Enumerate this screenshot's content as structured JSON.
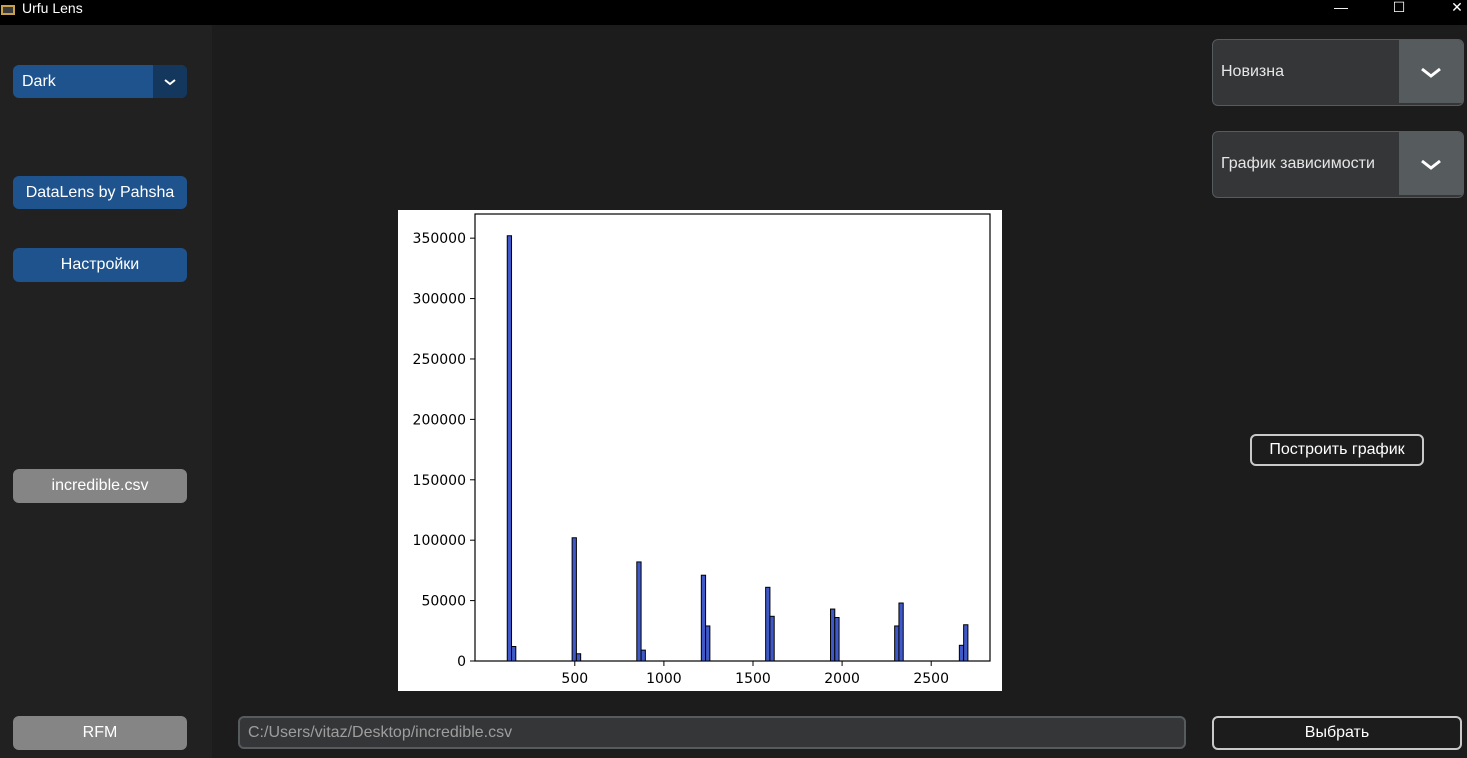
{
  "window": {
    "title": "Urfu Lens",
    "controls": {
      "minimize": "—",
      "maximize": "☐",
      "close": "✕"
    }
  },
  "sidebar": {
    "theme_value": "Dark",
    "datalens_label": "DataLens by Pahsha",
    "settings_label": "Настройки",
    "file_label": "incredible.csv",
    "rfm_label": "RFM"
  },
  "controls": {
    "metric_value": "Новизна",
    "chart_type_value": "График зависимости",
    "build_label": "Построить график",
    "select_label": "Выбрать"
  },
  "path": {
    "value": "C:/Users/vitaz/Desktop/incredible.csv"
  },
  "colors": {
    "bar_fill": "#4059c8",
    "accent": "#1f538d"
  },
  "chart_data": {
    "type": "bar",
    "title": "",
    "xlabel": "",
    "ylabel": "",
    "xlim": [
      -60,
      2830
    ],
    "ylim": [
      0,
      370000
    ],
    "bin_width": 24,
    "x_ticks": [
      500,
      1000,
      1500,
      2000,
      2500
    ],
    "y_ticks": [
      0,
      50000,
      100000,
      150000,
      200000,
      250000,
      300000,
      350000
    ],
    "bars": [
      {
        "x": 133,
        "y": 352000
      },
      {
        "x": 157,
        "y": 12000
      },
      {
        "x": 497,
        "y": 102000
      },
      {
        "x": 521,
        "y": 6000
      },
      {
        "x": 860,
        "y": 82000
      },
      {
        "x": 884,
        "y": 9000
      },
      {
        "x": 1222,
        "y": 71000
      },
      {
        "x": 1246,
        "y": 29000
      },
      {
        "x": 1583,
        "y": 61000
      },
      {
        "x": 1607,
        "y": 37000
      },
      {
        "x": 1947,
        "y": 43000
      },
      {
        "x": 1971,
        "y": 36000
      },
      {
        "x": 2307,
        "y": 29000
      },
      {
        "x": 2331,
        "y": 48000
      },
      {
        "x": 2670,
        "y": 13000
      },
      {
        "x": 2694,
        "y": 30000
      }
    ]
  }
}
